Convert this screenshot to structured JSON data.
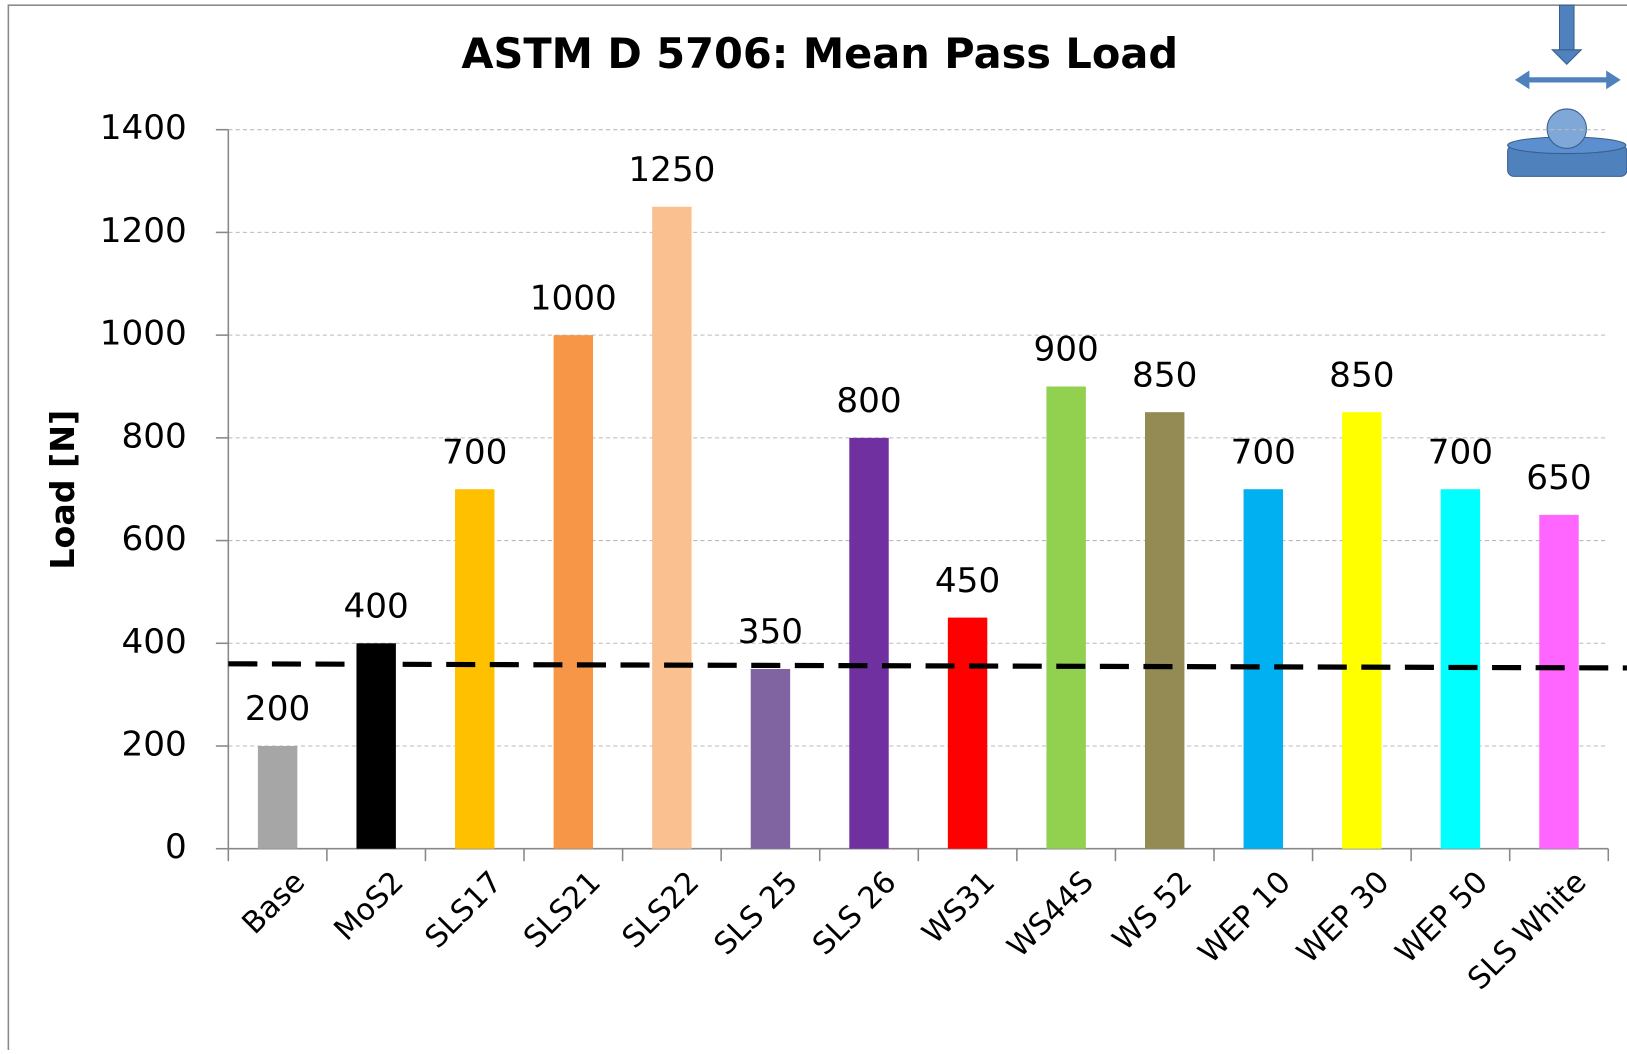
{
  "chart_data": {
    "type": "bar",
    "title": "ASTM D 5706: Mean Pass Load",
    "y_label": "Load [N]",
    "categories": [
      "Base",
      "MoS2",
      "SLS17",
      "SLS21",
      "SLS22",
      "SLS 25",
      "SLS 26",
      "WS31",
      "WS44S",
      "WS 52",
      "WEP 10",
      "WEP 30",
      "WEP 50",
      "SLS White"
    ],
    "values": [
      200,
      400,
      700,
      1000,
      1250,
      350,
      800,
      450,
      900,
      850,
      700,
      850,
      700,
      650
    ],
    "colors": [
      "#a6a6a6",
      "#000000",
      "#ffc000",
      "#f79646",
      "#fac090",
      "#8064a2",
      "#7030a0",
      "#ff0000",
      "#92d050",
      "#948a54",
      "#00b0f0",
      "#ffff00",
      "#00ffff",
      "#ff66ff"
    ],
    "ylim": [
      0,
      1400
    ],
    "yticks": [
      0,
      200,
      400,
      600,
      800,
      1000,
      1200,
      1400
    ],
    "grid": true,
    "reference_line": [
      360,
      352
    ]
  }
}
